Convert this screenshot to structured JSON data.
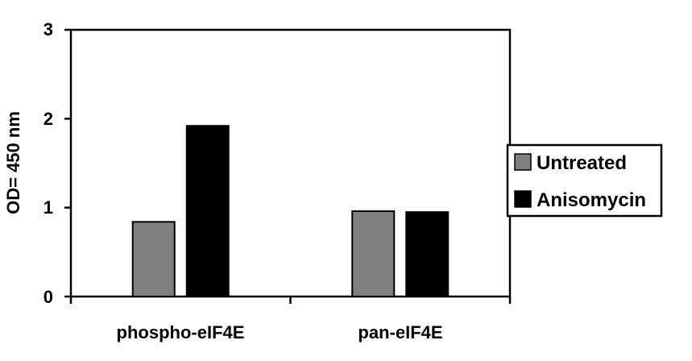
{
  "chart_data": {
    "type": "bar",
    "categories": [
      "phospho-eIF4E",
      "pan-eIF4E"
    ],
    "series": [
      {
        "name": "Untreated",
        "values": [
          0.84,
          0.96
        ],
        "color": "#808080"
      },
      {
        "name": "Anisomycin",
        "values": [
          1.92,
          0.95
        ],
        "color": "#000000"
      }
    ],
    "title": "",
    "xlabel": "",
    "ylabel": "OD= 450 nm",
    "ylim": [
      0,
      3
    ],
    "yticks": [
      "0",
      "1",
      "2",
      "3"
    ],
    "grid": false,
    "legend_position": "right"
  }
}
